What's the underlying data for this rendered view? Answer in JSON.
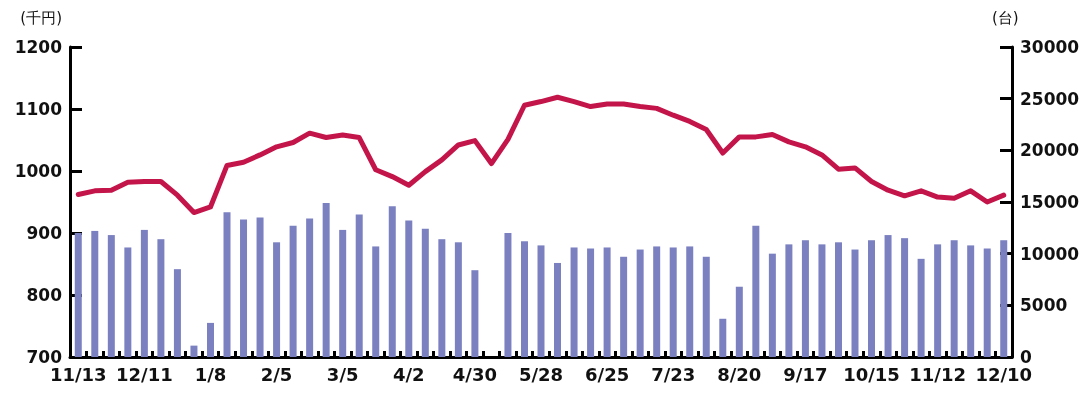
{
  "chart_data": {
    "type": "bar",
    "ylabel": "(千円)",
    "y2label": "(台)",
    "categories": [
      "11/13",
      null,
      null,
      null,
      "12/11",
      null,
      null,
      null,
      "1/8",
      null,
      null,
      null,
      "2/5",
      null,
      null,
      null,
      "3/5",
      null,
      null,
      null,
      "4/2",
      null,
      null,
      null,
      "4/30",
      null,
      null,
      null,
      "5/28",
      null,
      null,
      null,
      "6/25",
      null,
      null,
      null,
      "7/23",
      null,
      null,
      null,
      "8/20",
      null,
      null,
      null,
      "9/17",
      null,
      null,
      null,
      "10/15",
      null,
      null,
      null,
      "11/12",
      null,
      null,
      null,
      "12/10"
    ],
    "series": [
      {
        "axis": "y2",
        "color": "#7b80c0",
        "values": [
          12000,
          12200,
          11800,
          10600,
          12300,
          11400,
          8500,
          1100,
          3300,
          14000,
          13300,
          13500,
          11100,
          12700,
          13400,
          14900,
          12300,
          13800,
          10700,
          14600,
          13200,
          12400,
          11400,
          11100,
          8400,
          null,
          12000,
          11200,
          10800,
          9100,
          10600,
          10500,
          10600,
          9700,
          10400,
          10700,
          10600,
          10700,
          9700,
          3700,
          6800,
          12700,
          10000,
          10900,
          11300,
          10900,
          11100,
          10400,
          11300,
          11800,
          11500,
          9500,
          10900,
          11300,
          10800,
          10500,
          11300
        ]
      },
      {
        "type": "line",
        "axis": "y",
        "color": "#c4154a",
        "values": [
          962,
          968,
          969,
          982,
          983,
          983,
          961,
          933,
          942,
          1009,
          1014,
          1026,
          1039,
          1046,
          1061,
          1054,
          1058,
          1054,
          1002,
          991,
          977,
          999,
          1018,
          1042,
          1049,
          1012,
          1051,
          1106,
          1112,
          1119,
          1112,
          1104,
          1108,
          1108,
          1104,
          1101,
          1090,
          1080,
          1067,
          1029,
          1055,
          1055,
          1059,
          1047,
          1039,
          1026,
          1003,
          1005,
          983,
          969,
          960,
          968,
          958,
          956,
          968,
          950,
          961
        ]
      }
    ],
    "ylim": [
      700,
      1200
    ],
    "yticks": [
      700,
      800,
      900,
      1000,
      1100,
      1200
    ],
    "y2lim": [
      0,
      30000
    ],
    "y2ticks": [
      0,
      5000,
      10000,
      15000,
      20000,
      25000,
      30000
    ],
    "grid": false,
    "marker": "none",
    "line_style": "solid"
  }
}
